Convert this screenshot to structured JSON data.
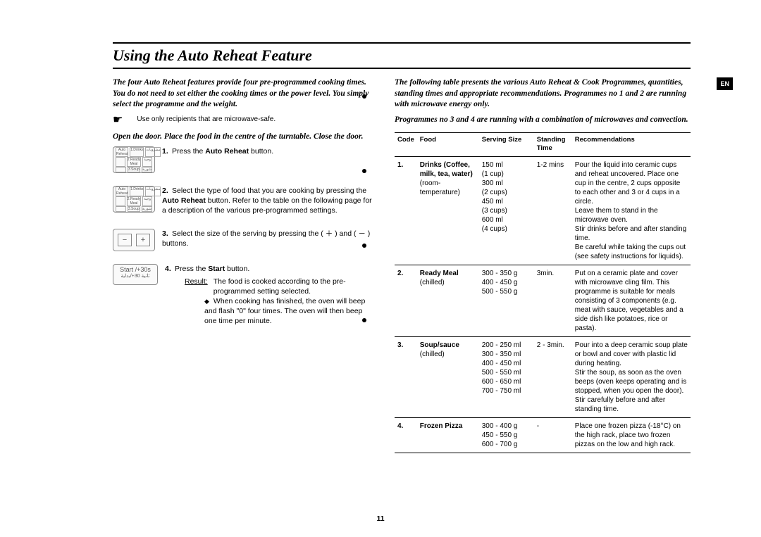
{
  "lang_tab": "EN",
  "title": "Using the Auto Reheat Feature",
  "left": {
    "intro": "The four Auto Reheat features provide four pre-programmed cooking times. You do not need to set either the cooking times or the power level. You simply select the programme and the weight.",
    "note": "Use only recipients that are microwave-safe.",
    "open_door": "Open the door. Place the food in the centre of the turntable. Close the door.",
    "steps": {
      "1": {
        "num": "1.",
        "text_a": "Press the ",
        "bold": "Auto Reheat",
        "text_b": " button."
      },
      "2": {
        "num": "2.",
        "text_a": "Select the type of food that you are cooking by pressing the ",
        "bold": "Auto Reheat",
        "text_b": " button. Refer to the table on the following page for a description of the various pre-programmed settings."
      },
      "3": {
        "num": "3.",
        "text": "Select the size of the serving by pressing the ( ＋ ) and ( － ) buttons."
      },
      "4": {
        "num": "4.",
        "text_a": "Press the ",
        "bold": "Start",
        "text_b": " button.",
        "result_label": "Result:",
        "result_text": "The food is cooked according to the pre-programmed setting selected.",
        "bullet": "When cooking has finished, the oven will beep and flash \"0\" four times. The oven will then beep one time per minute."
      }
    },
    "start_label": "Start /+30s",
    "start_label2": "ثانية 30+/بداية"
  },
  "right": {
    "intro1": "The following table presents the various Auto Reheat & Cook Programmes, quantities, standing times and appropriate recommendations. Programmes no 1 and 2 are running with microwave energy only.",
    "intro2": "Programmes no 3 and 4 are running with a combination of microwaves and convection.",
    "headers": {
      "code": "Code",
      "food": "Food",
      "size": "Serving Size",
      "time": "Standing Time",
      "rec": "Recommendations"
    },
    "rows": [
      {
        "code": "1.",
        "food_bold": "Drinks (Coffee, milk, tea, water)",
        "food_plain": "(room-temperature)",
        "size": "150 ml\n(1 cup)\n300 ml\n(2 cups)\n450 ml\n(3 cups)\n600 ml\n(4 cups)",
        "time": "1-2 mins",
        "rec": "Pour the liquid into ceramic cups and reheat uncovered. Place one cup in the centre, 2 cups opposite to each other and 3 or 4 cups in a circle.\nLeave them to stand in the microwave oven.\nStir drinks before and after standing time.\nBe careful while taking the cups out (see safety instructions for liquids)."
      },
      {
        "code": "2.",
        "food_bold": "Ready Meal",
        "food_plain": "(chilled)",
        "size": "300 - 350 g\n400 - 450 g\n500 - 550 g",
        "time": "3min.",
        "rec": "Put on a ceramic plate and cover with microwave cling film. This programme is suitable for meals consisting of 3 components (e.g. meat with sauce, vegetables and a side dish like potatoes, rice or pasta)."
      },
      {
        "code": "3.",
        "food_bold": "Soup/sauce",
        "food_plain": "(chilled)",
        "size": "200 - 250 ml\n300 - 350 ml\n400 - 450 ml\n500 - 550 ml\n600 - 650 ml\n700 - 750 ml",
        "time": "2 - 3min.",
        "rec": "Pour into a deep ceramic soup plate or bowl and cover with plastic lid during heating.\nStir the soup, as soon as the oven beeps (oven keeps operating and is stopped, when you open the door).\nStir carefully before and after standing time."
      },
      {
        "code": "4.",
        "food_bold": "Frozen Pizza",
        "food_plain": "",
        "size": "300 - 400 g\n450 - 550 g\n600 - 700 g",
        "time": "-",
        "rec": "Place one frozen pizza (-18°C) on the high rack, place two frozen pizzas on the low and high rack."
      }
    ]
  },
  "page_number": "11"
}
